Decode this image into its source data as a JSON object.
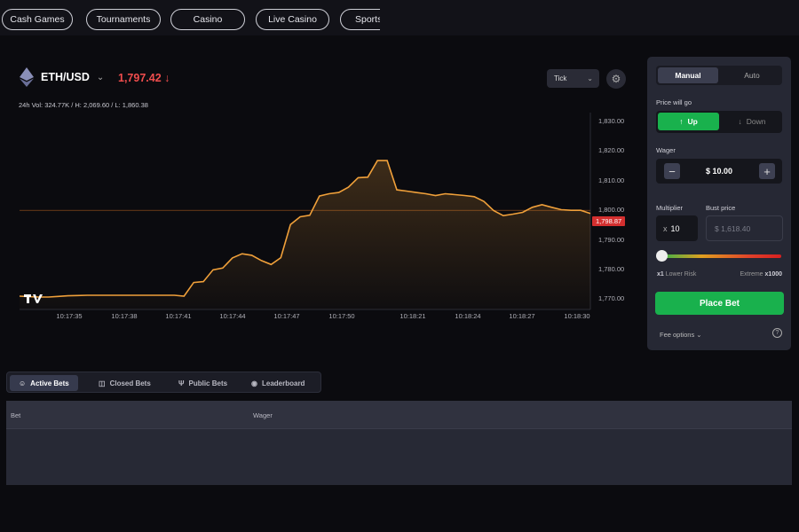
{
  "nav": {
    "tabs": [
      "Cash Games",
      "Tournaments",
      "Casino",
      "Live Casino",
      "Sports"
    ]
  },
  "market": {
    "pair": "ETH/USD",
    "price": "1,797.42",
    "direction_icon": "arrow-down-icon",
    "stats": "24h Vol: 324.77K / H: 2,069.60 / L: 1,860.38",
    "chart_type": "Tick",
    "current_price_label": "1,798.87"
  },
  "chart_data": {
    "type": "area",
    "y_ticks": [
      "1,830.00",
      "1,820.00",
      "1,810.00",
      "1,800.00",
      "1,790.00",
      "1,780.00",
      "1,770.00"
    ],
    "x_ticks": [
      "10:17:35",
      "10:17:38",
      "10:17:41",
      "10:17:44",
      "10:17:47",
      "10:17:50",
      "10:18:21",
      "10:18:24",
      "10:18:27",
      "10:18:30"
    ],
    "ylim": [
      1766.5,
      1833
    ],
    "reference_line": 1800.0,
    "line_color": "#f0a03a",
    "values": [
      1771.0,
      1770.8,
      1770.7,
      1770.7,
      1770.9,
      1771.1,
      1771.2,
      1771.3,
      1771.3,
      1771.3,
      1771.3,
      1771.3,
      1771.3,
      1771.3,
      1771.3,
      1771.3,
      1771.3,
      1771.0,
      1775.6,
      1775.9,
      1779.9,
      1780.5,
      1783.9,
      1785.3,
      1784.8,
      1783.0,
      1781.7,
      1784.0,
      1795.2,
      1797.8,
      1798.3,
      1804.8,
      1805.6,
      1806.0,
      1807.8,
      1811.0,
      1811.2,
      1816.8,
      1816.8,
      1806.9,
      1806.5,
      1806.0,
      1805.6,
      1805.0,
      1805.6,
      1805.3,
      1805.0,
      1804.6,
      1803.0,
      1799.9,
      1798.2,
      1798.7,
      1799.3,
      1801.0,
      1801.9,
      1801.0,
      1800.2,
      1800.0,
      1800.0,
      1798.9
    ]
  },
  "bet_panel": {
    "mode_tabs": [
      "Manual",
      "Auto"
    ],
    "price_will_go_label": "Price will go",
    "up_label": "Up",
    "down_label": "Down",
    "wager_label": "Wager",
    "wager_value": "$ 10.00",
    "multiplier_label": "Multiplier",
    "multiplier_prefix": "x",
    "multiplier_value": "10",
    "bust_price_label": "Bust price",
    "bust_price_value": "$ 1,618.40",
    "risk_slider": {
      "min_label": "x1",
      "min_desc": "Lower Risk",
      "max_desc": "Extreme",
      "max_label": "x1000",
      "value": 10
    },
    "place_bet_label": "Place Bet",
    "fee_options_label": "Fee options"
  },
  "bets": {
    "tabs": [
      "Active Bets",
      "Closed Bets",
      "Public Bets",
      "Leaderboard"
    ],
    "columns": [
      "Bet",
      "Wager"
    ]
  },
  "colors": {
    "accent_green": "#19b14d",
    "price_red": "#ef4d4d",
    "line_orange": "#f0a03a"
  }
}
